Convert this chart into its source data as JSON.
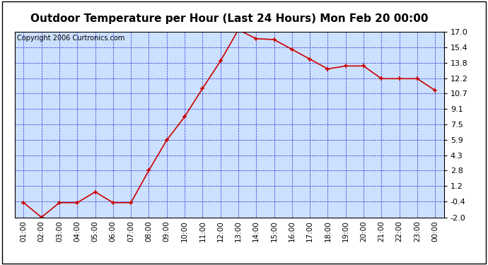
{
  "title": "Outdoor Temperature per Hour (Last 24 Hours) Mon Feb 20 00:00",
  "copyright": "Copyright 2006 Curtronics.com",
  "x_labels": [
    "01:00",
    "02:00",
    "03:00",
    "04:00",
    "05:00",
    "06:00",
    "07:00",
    "08:00",
    "09:00",
    "10:00",
    "11:00",
    "12:00",
    "13:00",
    "14:00",
    "15:00",
    "16:00",
    "17:00",
    "18:00",
    "19:00",
    "20:00",
    "21:00",
    "22:00",
    "23:00",
    "00:00"
  ],
  "y_values": [
    -0.5,
    -2.0,
    -0.5,
    -0.5,
    0.6,
    -0.5,
    -0.5,
    2.8,
    5.9,
    8.3,
    11.2,
    14.0,
    17.2,
    16.3,
    16.2,
    15.2,
    14.2,
    13.2,
    13.5,
    13.5,
    12.2,
    12.2,
    12.2,
    11.0
  ],
  "y_ticks": [
    17.0,
    15.4,
    13.8,
    12.2,
    10.7,
    9.1,
    7.5,
    5.9,
    4.3,
    2.8,
    1.2,
    -0.4,
    -2.0
  ],
  "y_min": -2.0,
  "y_max": 17.0,
  "line_color": "#cc0000",
  "marker_color": "#cc0000",
  "bg_color": "#cce0ff",
  "grid_color": "#0000cc",
  "outer_bg": "#ffffff",
  "title_fontsize": 11,
  "copyright_fontsize": 7,
  "tick_fontsize": 7.5,
  "y_tick_fontsize": 8
}
